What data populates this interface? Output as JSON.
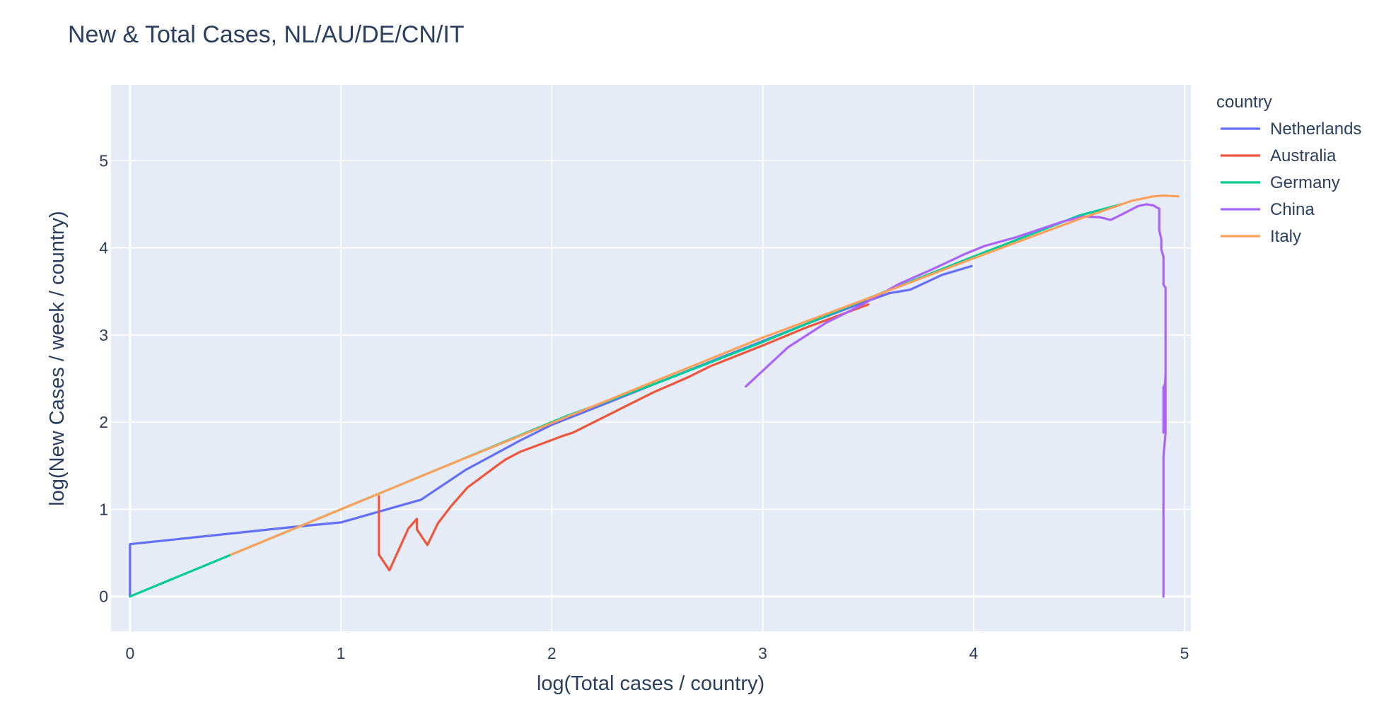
{
  "chart_data": {
    "type": "line",
    "title": "New & Total Cases, NL/AU/DE/CN/IT",
    "xlabel": "log(Total cases / country)",
    "ylabel": "log(New Cases / week / country)",
    "xlim": [
      -0.09,
      5.03
    ],
    "ylim": [
      -0.4,
      5.87
    ],
    "xticks": [
      0,
      1,
      2,
      3,
      4,
      5
    ],
    "yticks": [
      0,
      1,
      2,
      3,
      4,
      5
    ],
    "grid": true,
    "legend_title": "country",
    "legend_position": "right",
    "series": [
      {
        "name": "Netherlands",
        "color": "#636efa",
        "x": [
          0,
          0,
          0.78,
          1.0,
          1.38,
          1.59,
          1.85,
          2.0,
          2.2,
          2.5,
          2.8,
          3.0,
          3.2,
          3.45,
          3.6,
          3.7,
          3.85,
          3.99
        ],
        "y": [
          0,
          0.6,
          0.8,
          0.85,
          1.11,
          1.45,
          1.79,
          1.97,
          2.16,
          2.45,
          2.74,
          2.93,
          3.12,
          3.35,
          3.48,
          3.52,
          3.69,
          3.79
        ]
      },
      {
        "name": "Australia",
        "color": "#ef553b",
        "x": [
          1.18,
          1.18,
          1.23,
          1.32,
          1.36,
          1.36,
          1.41,
          1.46,
          1.52,
          1.6,
          1.75,
          1.78,
          1.85,
          2.05,
          2.1,
          2.48,
          2.65,
          2.75,
          3.0,
          3.2,
          3.5
        ],
        "y": [
          1.15,
          0.48,
          0.3,
          0.78,
          0.89,
          0.77,
          0.59,
          0.84,
          1.03,
          1.25,
          1.52,
          1.57,
          1.66,
          1.84,
          1.88,
          2.34,
          2.52,
          2.64,
          2.88,
          3.08,
          3.35
        ]
      },
      {
        "name": "Germany",
        "color": "#00cc96",
        "x": [
          0,
          0.48,
          1.0,
          1.5,
          2.0,
          2.07,
          2.5,
          3.0,
          3.5,
          4.0,
          4.5,
          4.7
        ],
        "y": [
          0,
          0.48,
          1.0,
          1.5,
          2.0,
          2.07,
          2.45,
          2.92,
          3.42,
          3.9,
          4.37,
          4.5
        ]
      },
      {
        "name": "China",
        "color": "#ab63fa",
        "x": [
          2.92,
          3.12,
          3.3,
          3.4,
          3.48,
          3.65,
          3.8,
          3.95,
          4.05,
          4.2,
          4.42,
          4.52,
          4.6,
          4.65,
          4.7,
          4.78,
          4.82,
          4.84,
          4.85,
          4.87,
          4.88,
          4.88,
          4.89,
          4.89,
          4.9,
          4.9,
          4.91,
          4.91,
          4.9,
          4.9,
          4.91,
          4.91,
          4.9,
          4.9
        ],
        "y": [
          2.41,
          2.86,
          3.14,
          3.26,
          3.36,
          3.59,
          3.75,
          3.92,
          4.02,
          4.12,
          4.3,
          4.36,
          4.35,
          4.32,
          4.38,
          4.48,
          4.5,
          4.49,
          4.49,
          4.46,
          4.45,
          4.2,
          4.1,
          3.98,
          3.9,
          3.58,
          3.54,
          2.45,
          2.4,
          1.88,
          2.58,
          1.88,
          1.6,
          0
        ]
      },
      {
        "name": "Italy",
        "color": "#ffa15a",
        "x": [
          0.48,
          1.0,
          1.5,
          2.0,
          2.5,
          3.0,
          3.5,
          4.0,
          4.5,
          4.75,
          4.85,
          4.9,
          4.97
        ],
        "y": [
          0.48,
          1.0,
          1.5,
          1.99,
          2.48,
          2.97,
          3.42,
          3.88,
          4.33,
          4.54,
          4.59,
          4.6,
          4.59
        ]
      }
    ]
  }
}
